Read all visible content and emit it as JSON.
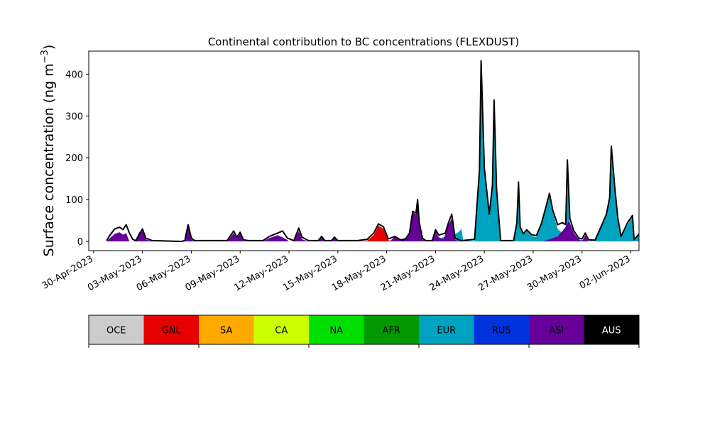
{
  "chart_data": {
    "type": "area",
    "stacked": true,
    "title": "Continental contribution to BC concentrations (FLEXDUST)",
    "ylabel_main": "Surface concentration (ng m",
    "ylabel_sup": "−3",
    "ylabel_close": ")",
    "xlabel": "",
    "x_unit": "day of May 2023 (day 0 = 30-Apr-2023)",
    "xlim": [
      -0.3,
      33.5
    ],
    "ylim": [
      -22,
      455
    ],
    "yticks": [
      {
        "v": 0,
        "label": "0"
      },
      {
        "v": 100,
        "label": "100"
      },
      {
        "v": 200,
        "label": "200"
      },
      {
        "v": 300,
        "label": "300"
      },
      {
        "v": 400,
        "label": "400"
      }
    ],
    "xticks": [
      {
        "v": 0,
        "label": "30-Apr-2023"
      },
      {
        "v": 3,
        "label": "03-May-2023"
      },
      {
        "v": 6,
        "label": "06-May-2023"
      },
      {
        "v": 9,
        "label": "09-May-2023"
      },
      {
        "v": 12,
        "label": "12-May-2023"
      },
      {
        "v": 15,
        "label": "15-May-2023"
      },
      {
        "v": 18,
        "label": "18-May-2023"
      },
      {
        "v": 21,
        "label": "21-May-2023"
      },
      {
        "v": 24,
        "label": "24-May-2023"
      },
      {
        "v": 27,
        "label": "27-May-2023"
      },
      {
        "v": 30,
        "label": "30-May-2023"
      },
      {
        "v": 33,
        "label": "02-Jun-2023"
      }
    ],
    "categories": [
      "OCE",
      "GNL",
      "SA",
      "CA",
      "NA",
      "AFR",
      "EUR",
      "RUS",
      "ASI",
      "AUS"
    ],
    "colors": [
      "#cccccc",
      "#e60000",
      "#ffaa00",
      "#ccff00",
      "#00e000",
      "#009a00",
      "#00a3bf",
      "#0033dd",
      "#660099",
      "#000000"
    ],
    "total_line_color": "#000000",
    "series": [
      {
        "name": "GNL",
        "color": "#e60000",
        "points": [
          [
            16.2,
            0
          ],
          [
            16.8,
            2
          ],
          [
            17.2,
            15
          ],
          [
            17.5,
            38
          ],
          [
            17.8,
            30
          ],
          [
            18.1,
            3
          ],
          [
            18.4,
            0
          ],
          [
            23.5,
            0
          ],
          [
            23.8,
            3
          ],
          [
            24.5,
            4
          ],
          [
            25.3,
            0
          ],
          [
            25.8,
            0
          ],
          [
            26.3,
            2
          ],
          [
            27.0,
            2
          ],
          [
            27.5,
            0
          ],
          [
            29.5,
            0
          ],
          [
            30.1,
            4
          ],
          [
            30.3,
            0
          ]
        ]
      },
      {
        "name": "NA",
        "color": "#00e000",
        "points": [
          [
            1.0,
            0
          ],
          [
            1.3,
            10
          ],
          [
            1.5,
            12
          ],
          [
            1.8,
            4
          ],
          [
            2.1,
            0
          ],
          [
            8.8,
            0
          ],
          [
            9.0,
            3
          ],
          [
            9.2,
            0
          ],
          [
            10.4,
            0
          ],
          [
            10.7,
            5
          ],
          [
            11.0,
            0
          ],
          [
            23.4,
            0
          ],
          [
            23.6,
            3
          ],
          [
            23.9,
            0
          ],
          [
            28.8,
            0
          ],
          [
            29.3,
            4
          ],
          [
            29.7,
            0
          ]
        ]
      },
      {
        "name": "RUS",
        "color": "#0033dd",
        "points": [
          [
            11.3,
            0
          ],
          [
            11.6,
            5
          ],
          [
            11.9,
            0
          ],
          [
            29.0,
            0
          ],
          [
            29.5,
            6
          ],
          [
            29.9,
            0
          ]
        ]
      },
      {
        "name": "EUR",
        "color": "#00a3bf",
        "points": [
          [
            20.6,
            0
          ],
          [
            21.0,
            3
          ],
          [
            21.6,
            12
          ],
          [
            22.0,
            14
          ],
          [
            22.4,
            22
          ],
          [
            22.6,
            30
          ],
          [
            22.7,
            2
          ],
          [
            23.4,
            2
          ],
          [
            23.7,
            160
          ],
          [
            23.8,
            430
          ],
          [
            24.0,
            170
          ],
          [
            24.3,
            60
          ],
          [
            24.5,
            130
          ],
          [
            24.6,
            335
          ],
          [
            24.75,
            120
          ],
          [
            25.0,
            0
          ],
          [
            25.8,
            0
          ],
          [
            26.0,
            40
          ],
          [
            26.1,
            140
          ],
          [
            26.2,
            30
          ],
          [
            26.4,
            15
          ],
          [
            26.6,
            25
          ],
          [
            26.9,
            13
          ],
          [
            27.2,
            10
          ],
          [
            27.5,
            40
          ],
          [
            27.8,
            80
          ],
          [
            28.0,
            110
          ],
          [
            28.2,
            70
          ],
          [
            28.5,
            30
          ],
          [
            28.8,
            20
          ],
          [
            29.0,
            10
          ],
          [
            29.1,
            190
          ],
          [
            29.25,
            15
          ],
          [
            29.5,
            8
          ],
          [
            30.0,
            3
          ],
          [
            30.8,
            0
          ],
          [
            31.2,
            35
          ],
          [
            31.5,
            60
          ],
          [
            31.7,
            100
          ],
          [
            31.8,
            200
          ],
          [
            32.0,
            130
          ],
          [
            32.2,
            50
          ],
          [
            32.4,
            10
          ],
          [
            32.8,
            40
          ],
          [
            33.1,
            60
          ],
          [
            33.2,
            0
          ],
          [
            33.5,
            20
          ]
        ]
      },
      {
        "name": "ASI",
        "color": "#660099",
        "points": [
          [
            0.8,
            0
          ],
          [
            1.0,
            8
          ],
          [
            1.3,
            18
          ],
          [
            1.6,
            22
          ],
          [
            1.8,
            16
          ],
          [
            2.0,
            20
          ],
          [
            2.2,
            0
          ],
          [
            2.4,
            0
          ],
          [
            2.6,
            2
          ],
          [
            2.8,
            18
          ],
          [
            3.0,
            25
          ],
          [
            3.2,
            5
          ],
          [
            3.6,
            0
          ],
          [
            5.6,
            0
          ],
          [
            5.8,
            35
          ],
          [
            6.0,
            5
          ],
          [
            6.2,
            0
          ],
          [
            8.2,
            0
          ],
          [
            8.6,
            20
          ],
          [
            8.8,
            8
          ],
          [
            9.0,
            18
          ],
          [
            9.2,
            2
          ],
          [
            9.5,
            0
          ],
          [
            10.4,
            0
          ],
          [
            10.8,
            8
          ],
          [
            11.3,
            15
          ],
          [
            11.8,
            6
          ],
          [
            12.0,
            0
          ],
          [
            12.3,
            0
          ],
          [
            12.6,
            25
          ],
          [
            12.8,
            5
          ],
          [
            13.2,
            0
          ],
          [
            13.8,
            0
          ],
          [
            14.0,
            10
          ],
          [
            14.2,
            0
          ],
          [
            14.6,
            0
          ],
          [
            14.8,
            8
          ],
          [
            15.0,
            0
          ],
          [
            18.2,
            0
          ],
          [
            18.5,
            12
          ],
          [
            18.8,
            5
          ],
          [
            19.2,
            8
          ],
          [
            19.4,
            20
          ],
          [
            19.6,
            70
          ],
          [
            19.8,
            65
          ],
          [
            19.9,
            100
          ],
          [
            20.0,
            40
          ],
          [
            20.2,
            5
          ],
          [
            20.4,
            0
          ],
          [
            20.8,
            0
          ],
          [
            21.0,
            25
          ],
          [
            21.2,
            10
          ],
          [
            21.5,
            5
          ],
          [
            21.8,
            40
          ],
          [
            22.0,
            55
          ],
          [
            22.2,
            3
          ],
          [
            22.6,
            0
          ],
          [
            27.6,
            0
          ],
          [
            28.5,
            12
          ],
          [
            28.8,
            25
          ],
          [
            29.0,
            35
          ],
          [
            29.2,
            50
          ],
          [
            29.5,
            20
          ],
          [
            29.8,
            5
          ],
          [
            30.0,
            0
          ],
          [
            30.2,
            15
          ],
          [
            30.4,
            0
          ]
        ]
      }
    ],
    "total_line": [
      [
        0.8,
        2
      ],
      [
        1.0,
        15
      ],
      [
        1.3,
        30
      ],
      [
        1.6,
        34
      ],
      [
        1.8,
        28
      ],
      [
        2.0,
        40
      ],
      [
        2.2,
        20
      ],
      [
        2.4,
        5
      ],
      [
        2.6,
        2
      ],
      [
        2.8,
        18
      ],
      [
        3.0,
        30
      ],
      [
        3.2,
        8
      ],
      [
        3.6,
        2
      ],
      [
        5.4,
        0
      ],
      [
        5.6,
        2
      ],
      [
        5.8,
        40
      ],
      [
        6.0,
        8
      ],
      [
        6.2,
        2
      ],
      [
        8.2,
        2
      ],
      [
        8.6,
        25
      ],
      [
        8.8,
        10
      ],
      [
        9.0,
        22
      ],
      [
        9.2,
        4
      ],
      [
        9.5,
        2
      ],
      [
        10.4,
        2
      ],
      [
        10.8,
        12
      ],
      [
        11.3,
        20
      ],
      [
        11.6,
        25
      ],
      [
        11.9,
        8
      ],
      [
        12.3,
        2
      ],
      [
        12.6,
        32
      ],
      [
        12.8,
        10
      ],
      [
        13.2,
        2
      ],
      [
        13.8,
        2
      ],
      [
        14.0,
        12
      ],
      [
        14.2,
        2
      ],
      [
        14.6,
        2
      ],
      [
        14.8,
        10
      ],
      [
        15.0,
        2
      ],
      [
        15.6,
        2
      ],
      [
        16.2,
        2
      ],
      [
        16.8,
        5
      ],
      [
        17.2,
        20
      ],
      [
        17.5,
        42
      ],
      [
        17.8,
        35
      ],
      [
        18.1,
        6
      ],
      [
        18.5,
        12
      ],
      [
        18.8,
        5
      ],
      [
        19.0,
        3
      ],
      [
        19.2,
        8
      ],
      [
        19.4,
        20
      ],
      [
        19.6,
        72
      ],
      [
        19.8,
        68
      ],
      [
        19.9,
        100
      ],
      [
        20.0,
        45
      ],
      [
        20.2,
        8
      ],
      [
        20.4,
        2
      ],
      [
        20.8,
        2
      ],
      [
        21.0,
        28
      ],
      [
        21.2,
        15
      ],
      [
        21.6,
        20
      ],
      [
        21.8,
        45
      ],
      [
        22.0,
        65
      ],
      [
        22.2,
        8
      ],
      [
        22.6,
        2
      ],
      [
        23.4,
        5
      ],
      [
        23.7,
        170
      ],
      [
        23.8,
        432
      ],
      [
        24.0,
        175
      ],
      [
        24.3,
        65
      ],
      [
        24.5,
        135
      ],
      [
        24.6,
        338
      ],
      [
        24.75,
        125
      ],
      [
        25.0,
        2
      ],
      [
        25.8,
        2
      ],
      [
        26.0,
        45
      ],
      [
        26.1,
        142
      ],
      [
        26.2,
        35
      ],
      [
        26.4,
        18
      ],
      [
        26.6,
        28
      ],
      [
        26.9,
        16
      ],
      [
        27.2,
        14
      ],
      [
        27.5,
        42
      ],
      [
        27.8,
        85
      ],
      [
        28.0,
        115
      ],
      [
        28.2,
        75
      ],
      [
        28.5,
        40
      ],
      [
        28.8,
        45
      ],
      [
        29.0,
        40
      ],
      [
        29.1,
        195
      ],
      [
        29.25,
        55
      ],
      [
        29.5,
        25
      ],
      [
        29.8,
        8
      ],
      [
        30.0,
        6
      ],
      [
        30.2,
        20
      ],
      [
        30.4,
        4
      ],
      [
        30.8,
        3
      ],
      [
        31.2,
        38
      ],
      [
        31.5,
        65
      ],
      [
        31.7,
        105
      ],
      [
        31.8,
        228
      ],
      [
        32.0,
        135
      ],
      [
        32.2,
        55
      ],
      [
        32.4,
        12
      ],
      [
        32.8,
        45
      ],
      [
        33.1,
        62
      ],
      [
        33.2,
        4
      ],
      [
        33.5,
        18
      ]
    ],
    "grid": false,
    "legend": "colorbar below the chart"
  }
}
